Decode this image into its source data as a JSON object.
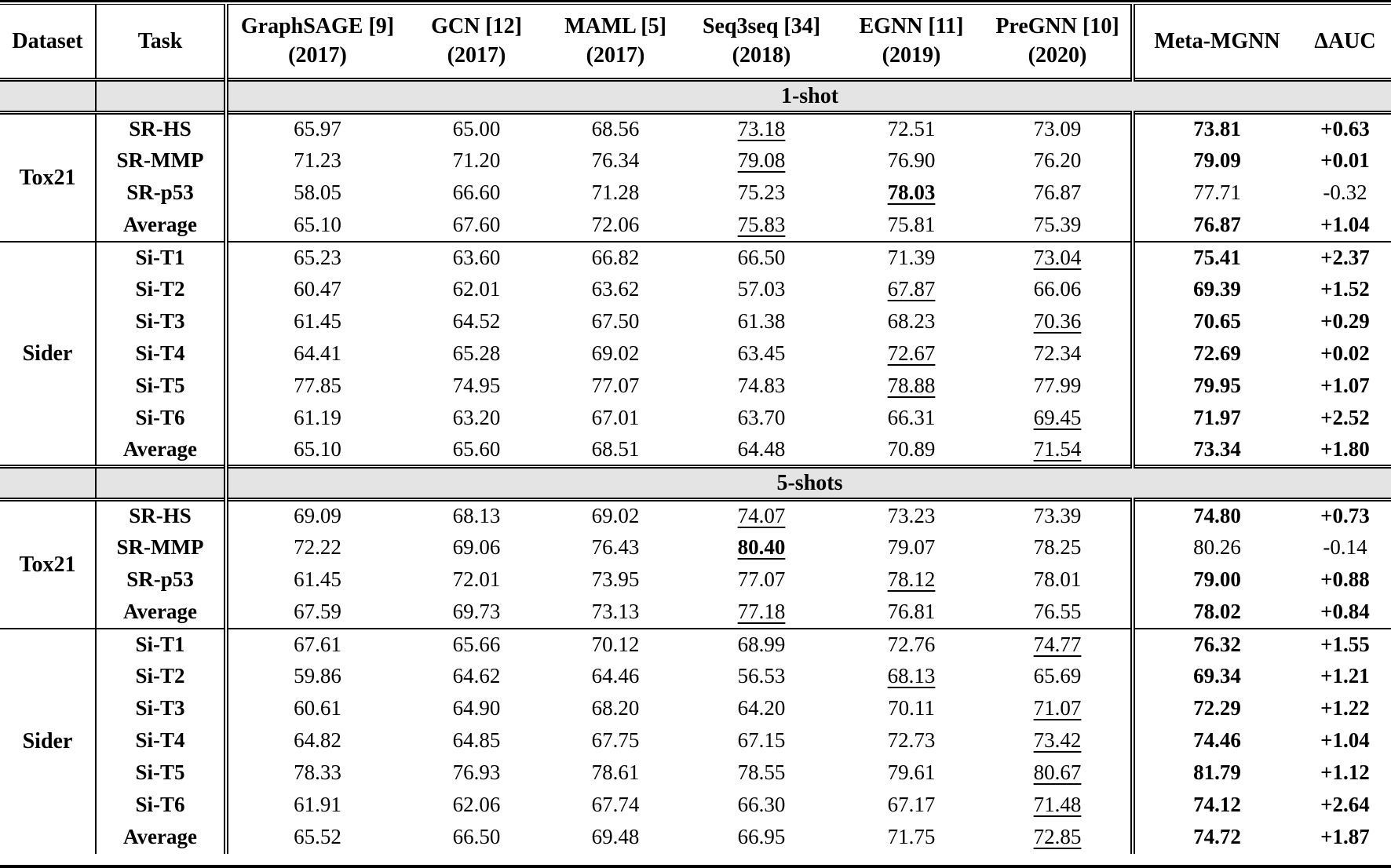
{
  "header": {
    "dataset": "Dataset",
    "task": "Task",
    "methods": [
      {
        "name": "GraphSAGE [9]",
        "year": "(2017)"
      },
      {
        "name": "GCN [12]",
        "year": "(2017)"
      },
      {
        "name": "MAML [5]",
        "year": "(2017)"
      },
      {
        "name": "Seq3seq [34]",
        "year": "(2018)"
      },
      {
        "name": "EGNN [11]",
        "year": "(2019)"
      },
      {
        "name": "PreGNN [10]",
        "year": "(2020)"
      }
    ],
    "ours": "Meta-MGNN",
    "delta": "ΔAUC"
  },
  "band_bg_color": "#e4e4e4",
  "chart_data": {
    "type": "table",
    "title": "AUC comparison of Meta-MGNN against baseline graph/meta-learning methods on Tox21 and Sider (1-shot and 5-shots)"
  },
  "sections": [
    {
      "band": "1-shot",
      "blocks": [
        {
          "dataset": "Tox21",
          "rows": [
            {
              "task": "SR-HS",
              "values": [
                "65.97",
                "65.00",
                "68.56",
                "73.18",
                "72.51",
                "73.09"
              ],
              "marks": [
                "",
                "",
                "",
                "u",
                "",
                ""
              ],
              "ours": "73.81",
              "ours_mark": "b",
              "delta": "+0.63",
              "delta_mark": "b"
            },
            {
              "task": "SR-MMP",
              "values": [
                "71.23",
                "71.20",
                "76.34",
                "79.08",
                "76.90",
                "76.20"
              ],
              "marks": [
                "",
                "",
                "",
                "u",
                "",
                ""
              ],
              "ours": "79.09",
              "ours_mark": "b",
              "delta": "+0.01",
              "delta_mark": "b"
            },
            {
              "task": "SR-p53",
              "values": [
                "58.05",
                "66.60",
                "71.28",
                "75.23",
                "78.03",
                "76.87"
              ],
              "marks": [
                "",
                "",
                "",
                "",
                "bu",
                ""
              ],
              "ours": "77.71",
              "ours_mark": "",
              "delta": "-0.32",
              "delta_mark": ""
            },
            {
              "task": "Average",
              "values": [
                "65.10",
                "67.60",
                "72.06",
                "75.83",
                "75.81",
                "75.39"
              ],
              "marks": [
                "",
                "",
                "",
                "u",
                "",
                ""
              ],
              "ours": "76.87",
              "ours_mark": "b",
              "delta": "+1.04",
              "delta_mark": "b"
            }
          ]
        },
        {
          "dataset": "Sider",
          "rows": [
            {
              "task": "Si-T1",
              "values": [
                "65.23",
                "63.60",
                "66.82",
                "66.50",
                "71.39",
                "73.04"
              ],
              "marks": [
                "",
                "",
                "",
                "",
                "",
                "u"
              ],
              "ours": "75.41",
              "ours_mark": "b",
              "delta": "+2.37",
              "delta_mark": "b"
            },
            {
              "task": "Si-T2",
              "values": [
                "60.47",
                "62.01",
                "63.62",
                "57.03",
                "67.87",
                "66.06"
              ],
              "marks": [
                "",
                "",
                "",
                "",
                "u",
                ""
              ],
              "ours": "69.39",
              "ours_mark": "b",
              "delta": "+1.52",
              "delta_mark": "b"
            },
            {
              "task": "Si-T3",
              "values": [
                "61.45",
                "64.52",
                "67.50",
                "61.38",
                "68.23",
                "70.36"
              ],
              "marks": [
                "",
                "",
                "",
                "",
                "",
                "u"
              ],
              "ours": "70.65",
              "ours_mark": "b",
              "delta": "+0.29",
              "delta_mark": "b"
            },
            {
              "task": "Si-T4",
              "values": [
                "64.41",
                "65.28",
                "69.02",
                "63.45",
                "72.67",
                "72.34"
              ],
              "marks": [
                "",
                "",
                "",
                "",
                "u",
                ""
              ],
              "ours": "72.69",
              "ours_mark": "b",
              "delta": "+0.02",
              "delta_mark": "b"
            },
            {
              "task": "Si-T5",
              "values": [
                "77.85",
                "74.95",
                "77.07",
                "74.83",
                "78.88",
                "77.99"
              ],
              "marks": [
                "",
                "",
                "",
                "",
                "u",
                ""
              ],
              "ours": "79.95",
              "ours_mark": "b",
              "delta": "+1.07",
              "delta_mark": "b"
            },
            {
              "task": "Si-T6",
              "values": [
                "61.19",
                "63.20",
                "67.01",
                "63.70",
                "66.31",
                "69.45"
              ],
              "marks": [
                "",
                "",
                "",
                "",
                "",
                "u"
              ],
              "ours": "71.97",
              "ours_mark": "b",
              "delta": "+2.52",
              "delta_mark": "b"
            },
            {
              "task": "Average",
              "values": [
                "65.10",
                "65.60",
                "68.51",
                "64.48",
                "70.89",
                "71.54"
              ],
              "marks": [
                "",
                "",
                "",
                "",
                "",
                "u"
              ],
              "ours": "73.34",
              "ours_mark": "b",
              "delta": "+1.80",
              "delta_mark": "b"
            }
          ]
        }
      ]
    },
    {
      "band": "5-shots",
      "blocks": [
        {
          "dataset": "Tox21",
          "rows": [
            {
              "task": "SR-HS",
              "values": [
                "69.09",
                "68.13",
                "69.02",
                "74.07",
                "73.23",
                "73.39"
              ],
              "marks": [
                "",
                "",
                "",
                "u",
                "",
                ""
              ],
              "ours": "74.80",
              "ours_mark": "b",
              "delta": "+0.73",
              "delta_mark": "b"
            },
            {
              "task": "SR-MMP",
              "values": [
                "72.22",
                "69.06",
                "76.43",
                "80.40",
                "79.07",
                "78.25"
              ],
              "marks": [
                "",
                "",
                "",
                "bu",
                "",
                ""
              ],
              "ours": "80.26",
              "ours_mark": "",
              "delta": "-0.14",
              "delta_mark": ""
            },
            {
              "task": "SR-p53",
              "values": [
                "61.45",
                "72.01",
                "73.95",
                "77.07",
                "78.12",
                "78.01"
              ],
              "marks": [
                "",
                "",
                "",
                "",
                "u",
                ""
              ],
              "ours": "79.00",
              "ours_mark": "b",
              "delta": "+0.88",
              "delta_mark": "b"
            },
            {
              "task": "Average",
              "values": [
                "67.59",
                "69.73",
                "73.13",
                "77.18",
                "76.81",
                "76.55"
              ],
              "marks": [
                "",
                "",
                "",
                "u",
                "",
                ""
              ],
              "ours": "78.02",
              "ours_mark": "b",
              "delta": "+0.84",
              "delta_mark": "b"
            }
          ]
        },
        {
          "dataset": "Sider",
          "rows": [
            {
              "task": "Si-T1",
              "values": [
                "67.61",
                "65.66",
                "70.12",
                "68.99",
                "72.76",
                "74.77"
              ],
              "marks": [
                "",
                "",
                "",
                "",
                "",
                "u"
              ],
              "ours": "76.32",
              "ours_mark": "b",
              "delta": "+1.55",
              "delta_mark": "b"
            },
            {
              "task": "Si-T2",
              "values": [
                "59.86",
                "64.62",
                "64.46",
                "56.53",
                "68.13",
                "65.69"
              ],
              "marks": [
                "",
                "",
                "",
                "",
                "u",
                ""
              ],
              "ours": "69.34",
              "ours_mark": "b",
              "delta": "+1.21",
              "delta_mark": "b"
            },
            {
              "task": "Si-T3",
              "values": [
                "60.61",
                "64.90",
                "68.20",
                "64.20",
                "70.11",
                "71.07"
              ],
              "marks": [
                "",
                "",
                "",
                "",
                "",
                "u"
              ],
              "ours": "72.29",
              "ours_mark": "b",
              "delta": "+1.22",
              "delta_mark": "b"
            },
            {
              "task": "Si-T4",
              "values": [
                "64.82",
                "64.85",
                "67.75",
                "67.15",
                "72.73",
                "73.42"
              ],
              "marks": [
                "",
                "",
                "",
                "",
                "",
                "u"
              ],
              "ours": "74.46",
              "ours_mark": "b",
              "delta": "+1.04",
              "delta_mark": "b"
            },
            {
              "task": "Si-T5",
              "values": [
                "78.33",
                "76.93",
                "78.61",
                "78.55",
                "79.61",
                "80.67"
              ],
              "marks": [
                "",
                "",
                "",
                "",
                "",
                "u"
              ],
              "ours": "81.79",
              "ours_mark": "b",
              "delta": "+1.12",
              "delta_mark": "b"
            },
            {
              "task": "Si-T6",
              "values": [
                "61.91",
                "62.06",
                "67.74",
                "66.30",
                "67.17",
                "71.48"
              ],
              "marks": [
                "",
                "",
                "",
                "",
                "",
                "u"
              ],
              "ours": "74.12",
              "ours_mark": "b",
              "delta": "+2.64",
              "delta_mark": "b"
            },
            {
              "task": "Average",
              "values": [
                "65.52",
                "66.50",
                "69.48",
                "66.95",
                "71.75",
                "72.85"
              ],
              "marks": [
                "",
                "",
                "",
                "",
                "",
                "u"
              ],
              "ours": "74.72",
              "ours_mark": "b",
              "delta": "+1.87",
              "delta_mark": "b"
            }
          ]
        }
      ]
    }
  ]
}
